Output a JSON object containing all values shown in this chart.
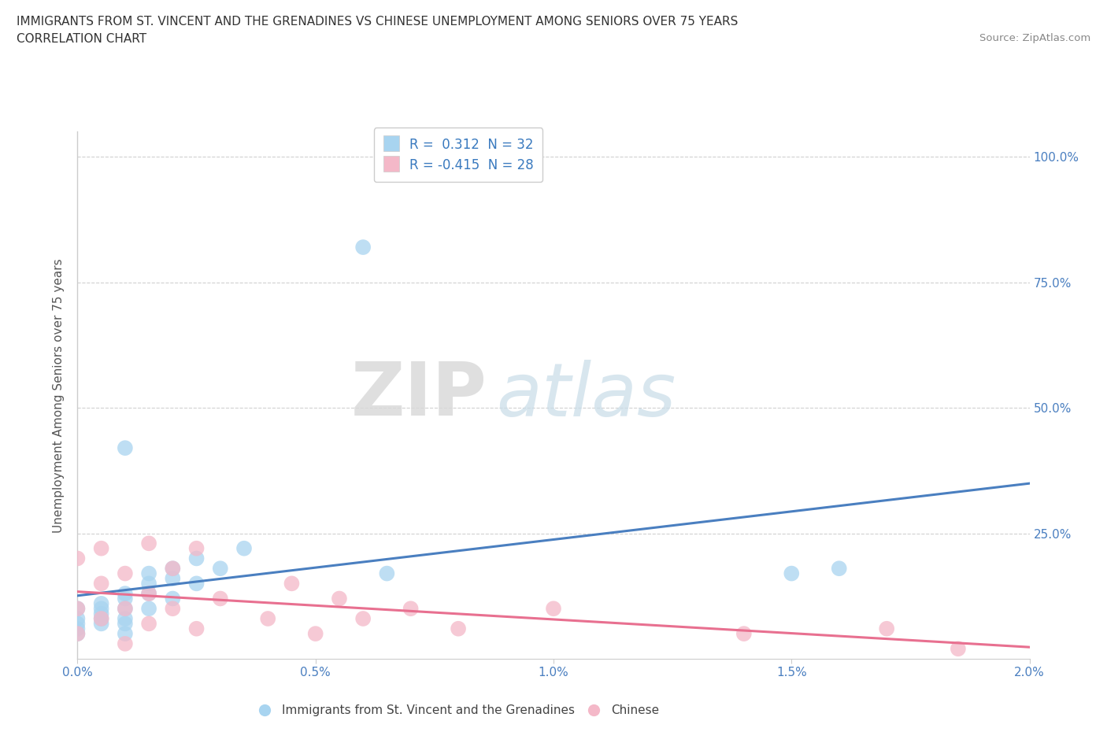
{
  "title_line1": "IMMIGRANTS FROM ST. VINCENT AND THE GRENADINES VS CHINESE UNEMPLOYMENT AMONG SENIORS OVER 75 YEARS",
  "title_line2": "CORRELATION CHART",
  "source": "Source: ZipAtlas.com",
  "ylabel": "Unemployment Among Seniors over 75 years",
  "xlim": [
    0.0,
    0.02
  ],
  "ylim": [
    0.0,
    1.05
  ],
  "xtick_labels": [
    "0.0%",
    "0.5%",
    "1.0%",
    "1.5%",
    "2.0%"
  ],
  "xtick_vals": [
    0.0,
    0.005,
    0.01,
    0.015,
    0.02
  ],
  "ytick_labels": [
    "25.0%",
    "50.0%",
    "75.0%",
    "100.0%"
  ],
  "ytick_vals": [
    0.25,
    0.5,
    0.75,
    1.0
  ],
  "blue_R": 0.312,
  "blue_N": 32,
  "pink_R": -0.415,
  "pink_N": 28,
  "blue_color": "#a8d4f0",
  "pink_color": "#f4b8c8",
  "blue_line_color": "#4a7fc0",
  "pink_line_color": "#e87090",
  "watermark_zip": "ZIP",
  "watermark_atlas": "atlas",
  "legend_label_blue": "Immigrants from St. Vincent and the Grenadines",
  "legend_label_pink": "Chinese",
  "blue_scatter_x": [
    0.0,
    0.0,
    0.0,
    0.0,
    0.0,
    0.0005,
    0.0005,
    0.0005,
    0.0005,
    0.0005,
    0.001,
    0.001,
    0.001,
    0.001,
    0.001,
    0.001,
    0.001,
    0.0015,
    0.0015,
    0.0015,
    0.0015,
    0.002,
    0.002,
    0.002,
    0.0025,
    0.0025,
    0.003,
    0.0035,
    0.006,
    0.0065,
    0.015,
    0.016
  ],
  "blue_scatter_y": [
    0.05,
    0.06,
    0.07,
    0.08,
    0.1,
    0.07,
    0.08,
    0.09,
    0.1,
    0.11,
    0.05,
    0.07,
    0.08,
    0.1,
    0.12,
    0.13,
    0.42,
    0.1,
    0.13,
    0.15,
    0.17,
    0.12,
    0.16,
    0.18,
    0.15,
    0.2,
    0.18,
    0.22,
    0.82,
    0.17,
    0.17,
    0.18
  ],
  "pink_scatter_x": [
    0.0,
    0.0,
    0.0,
    0.0005,
    0.0005,
    0.0005,
    0.001,
    0.001,
    0.001,
    0.0015,
    0.0015,
    0.0015,
    0.002,
    0.002,
    0.0025,
    0.0025,
    0.003,
    0.004,
    0.0045,
    0.005,
    0.0055,
    0.006,
    0.007,
    0.008,
    0.01,
    0.014,
    0.017,
    0.0185
  ],
  "pink_scatter_y": [
    0.05,
    0.1,
    0.2,
    0.08,
    0.15,
    0.22,
    0.03,
    0.1,
    0.17,
    0.07,
    0.13,
    0.23,
    0.1,
    0.18,
    0.06,
    0.22,
    0.12,
    0.08,
    0.15,
    0.05,
    0.12,
    0.08,
    0.1,
    0.06,
    0.1,
    0.05,
    0.06,
    0.02
  ],
  "background_color": "#ffffff",
  "grid_color": "#d0d0d0"
}
